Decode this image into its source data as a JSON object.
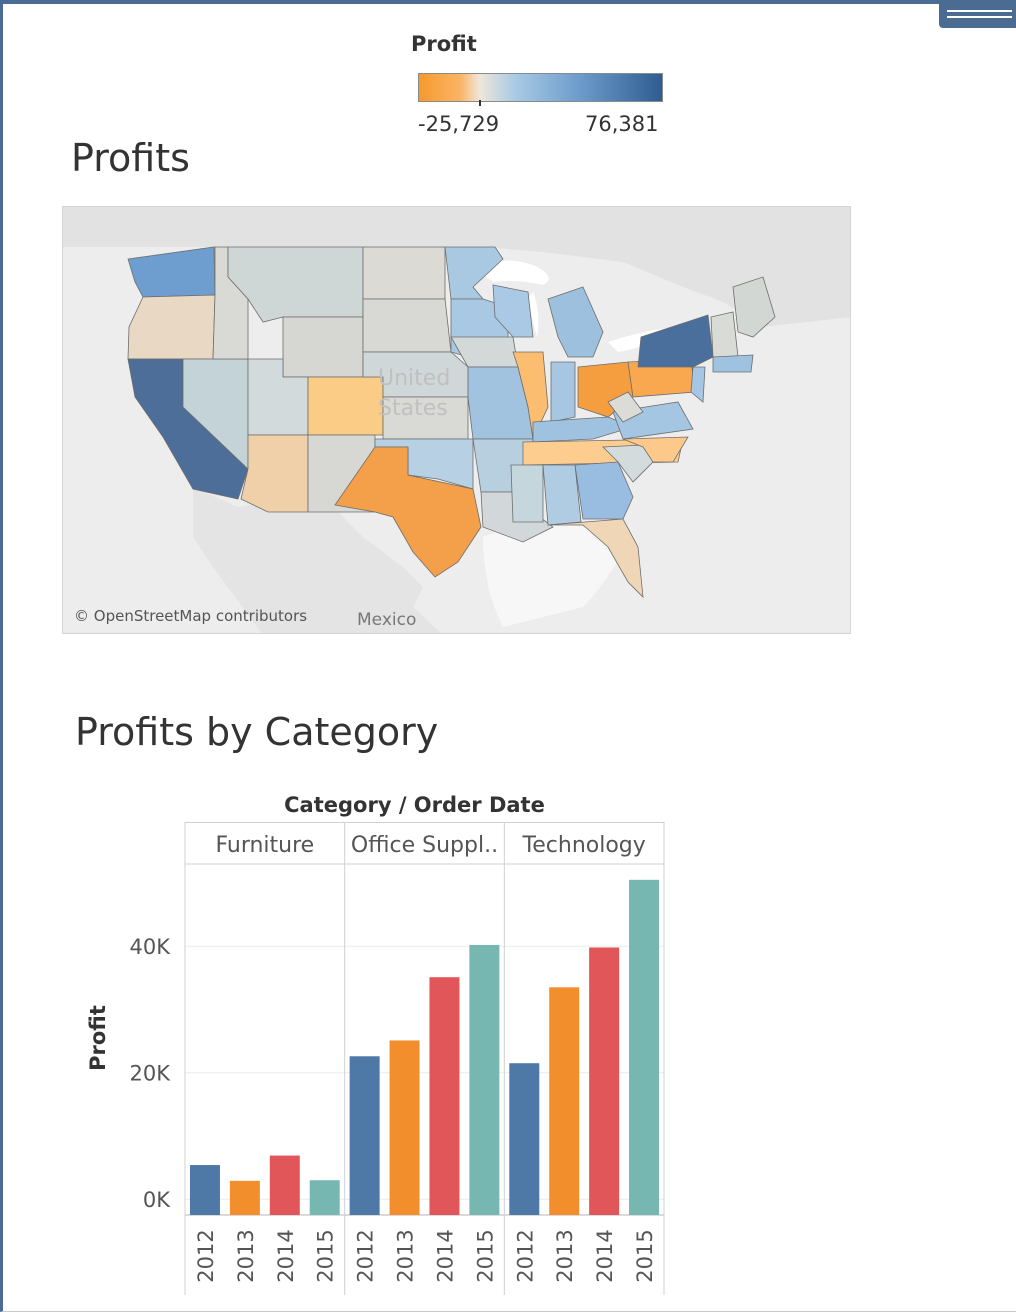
{
  "legend": {
    "title": "Profit",
    "min_label": "-25,729",
    "max_label": "76,381",
    "colors": {
      "negative": "#f59a2e",
      "neutral": "#e6e0d8",
      "positive": "#2f5d92"
    }
  },
  "map": {
    "title": "Profits",
    "attribution": "© OpenStreetMap contributors",
    "country_label_line1": "United",
    "country_label_line2": "States",
    "neighbor_label": "Mexico"
  },
  "chart": {
    "title": "Profits by Category"
  },
  "chart_data": [
    {
      "type": "map",
      "title": "Profits",
      "color_measure": "Profit",
      "color_range": [
        -25729,
        76381
      ]
    },
    {
      "type": "bar",
      "title": "Profits by Category",
      "header": "Category / Order Date",
      "ylabel": "Profit",
      "ylim": [
        -2500,
        53000
      ],
      "yticks": [
        0,
        20000,
        40000
      ],
      "ytick_labels": [
        "0K",
        "20K",
        "40K"
      ],
      "grid": true,
      "categories": [
        "Furniture",
        "Office Suppl..",
        "Technology"
      ],
      "years": [
        "2012",
        "2013",
        "2014",
        "2015"
      ],
      "year_colors": [
        "#4e79a7",
        "#f28e2b",
        "#e15759",
        "#76b7b2"
      ],
      "values": [
        [
          5400,
          2900,
          6900,
          3000
        ],
        [
          22600,
          25100,
          35100,
          40200
        ],
        [
          21500,
          33500,
          39800,
          50500
        ]
      ]
    }
  ]
}
